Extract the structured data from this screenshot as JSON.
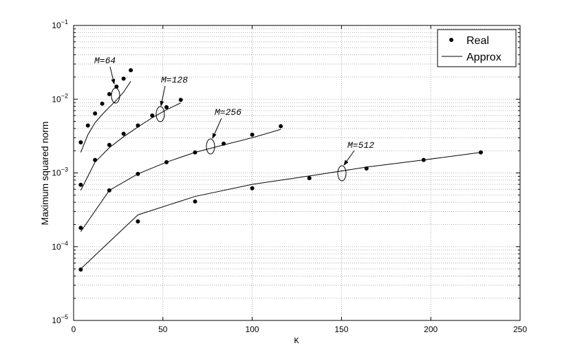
{
  "chart_data": {
    "type": "log-line-marker",
    "xlabel": "K",
    "ylabel": "Maximum squared norm",
    "xlim": [
      0,
      250
    ],
    "xticks": [
      0,
      50,
      100,
      150,
      200,
      250
    ],
    "ylim": [
      1e-05,
      0.1
    ],
    "log_y": true,
    "yticks": [
      {
        "value": 1e-05,
        "label": "10−5"
      },
      {
        "value": 0.0001,
        "label": "10−4"
      },
      {
        "value": 0.001,
        "label": "10−3"
      },
      {
        "value": 0.01,
        "label": "10−2"
      },
      {
        "value": 0.1,
        "label": "10−1"
      }
    ],
    "grid": true,
    "minor_grid": true,
    "color": "#000000",
    "legend": {
      "position": "northeast",
      "entries": [
        "Real",
        "Approx"
      ]
    },
    "groups": [
      {
        "annotation": "M=64",
        "x": [
          4,
          8,
          12,
          16,
          20,
          24,
          28,
          32
        ],
        "real": [
          0.0026,
          0.0044,
          0.0064,
          0.0087,
          0.0117,
          0.0148,
          0.019,
          0.0247
        ],
        "approx": [
          0.0019,
          0.0033,
          0.0048,
          0.0062,
          0.0078,
          0.0097,
          0.0125,
          0.0175
        ]
      },
      {
        "annotation": "M=128",
        "x": [
          4,
          12,
          20,
          28,
          36,
          44,
          52,
          60
        ],
        "real": [
          0.00069,
          0.0015,
          0.0024,
          0.0034,
          0.0044,
          0.006,
          0.0078,
          0.0098
        ],
        "approx": [
          0.00058,
          0.0014,
          0.0022,
          0.0031,
          0.0042,
          0.0056,
          0.0072,
          0.0089
        ]
      },
      {
        "annotation": "M=256",
        "x": [
          4,
          20,
          36,
          52,
          68,
          84,
          100,
          116
        ],
        "real": [
          0.00018,
          0.00058,
          0.00097,
          0.0014,
          0.0019,
          0.0025,
          0.0033,
          0.0043
        ],
        "approx": [
          0.00016,
          0.00058,
          0.00097,
          0.0014,
          0.0019,
          0.0024,
          0.003,
          0.0039
        ]
      },
      {
        "annotation": "M=512",
        "x": [
          4,
          36,
          68,
          100,
          132,
          164,
          196,
          228
        ],
        "real": [
          4.9e-05,
          0.00022,
          0.00041,
          0.00062,
          0.00085,
          0.00115,
          0.0015,
          0.0019
        ],
        "approx": [
          5e-05,
          0.00027,
          0.00048,
          0.0007,
          0.00091,
          0.0012,
          0.0015,
          0.0019
        ]
      }
    ]
  }
}
